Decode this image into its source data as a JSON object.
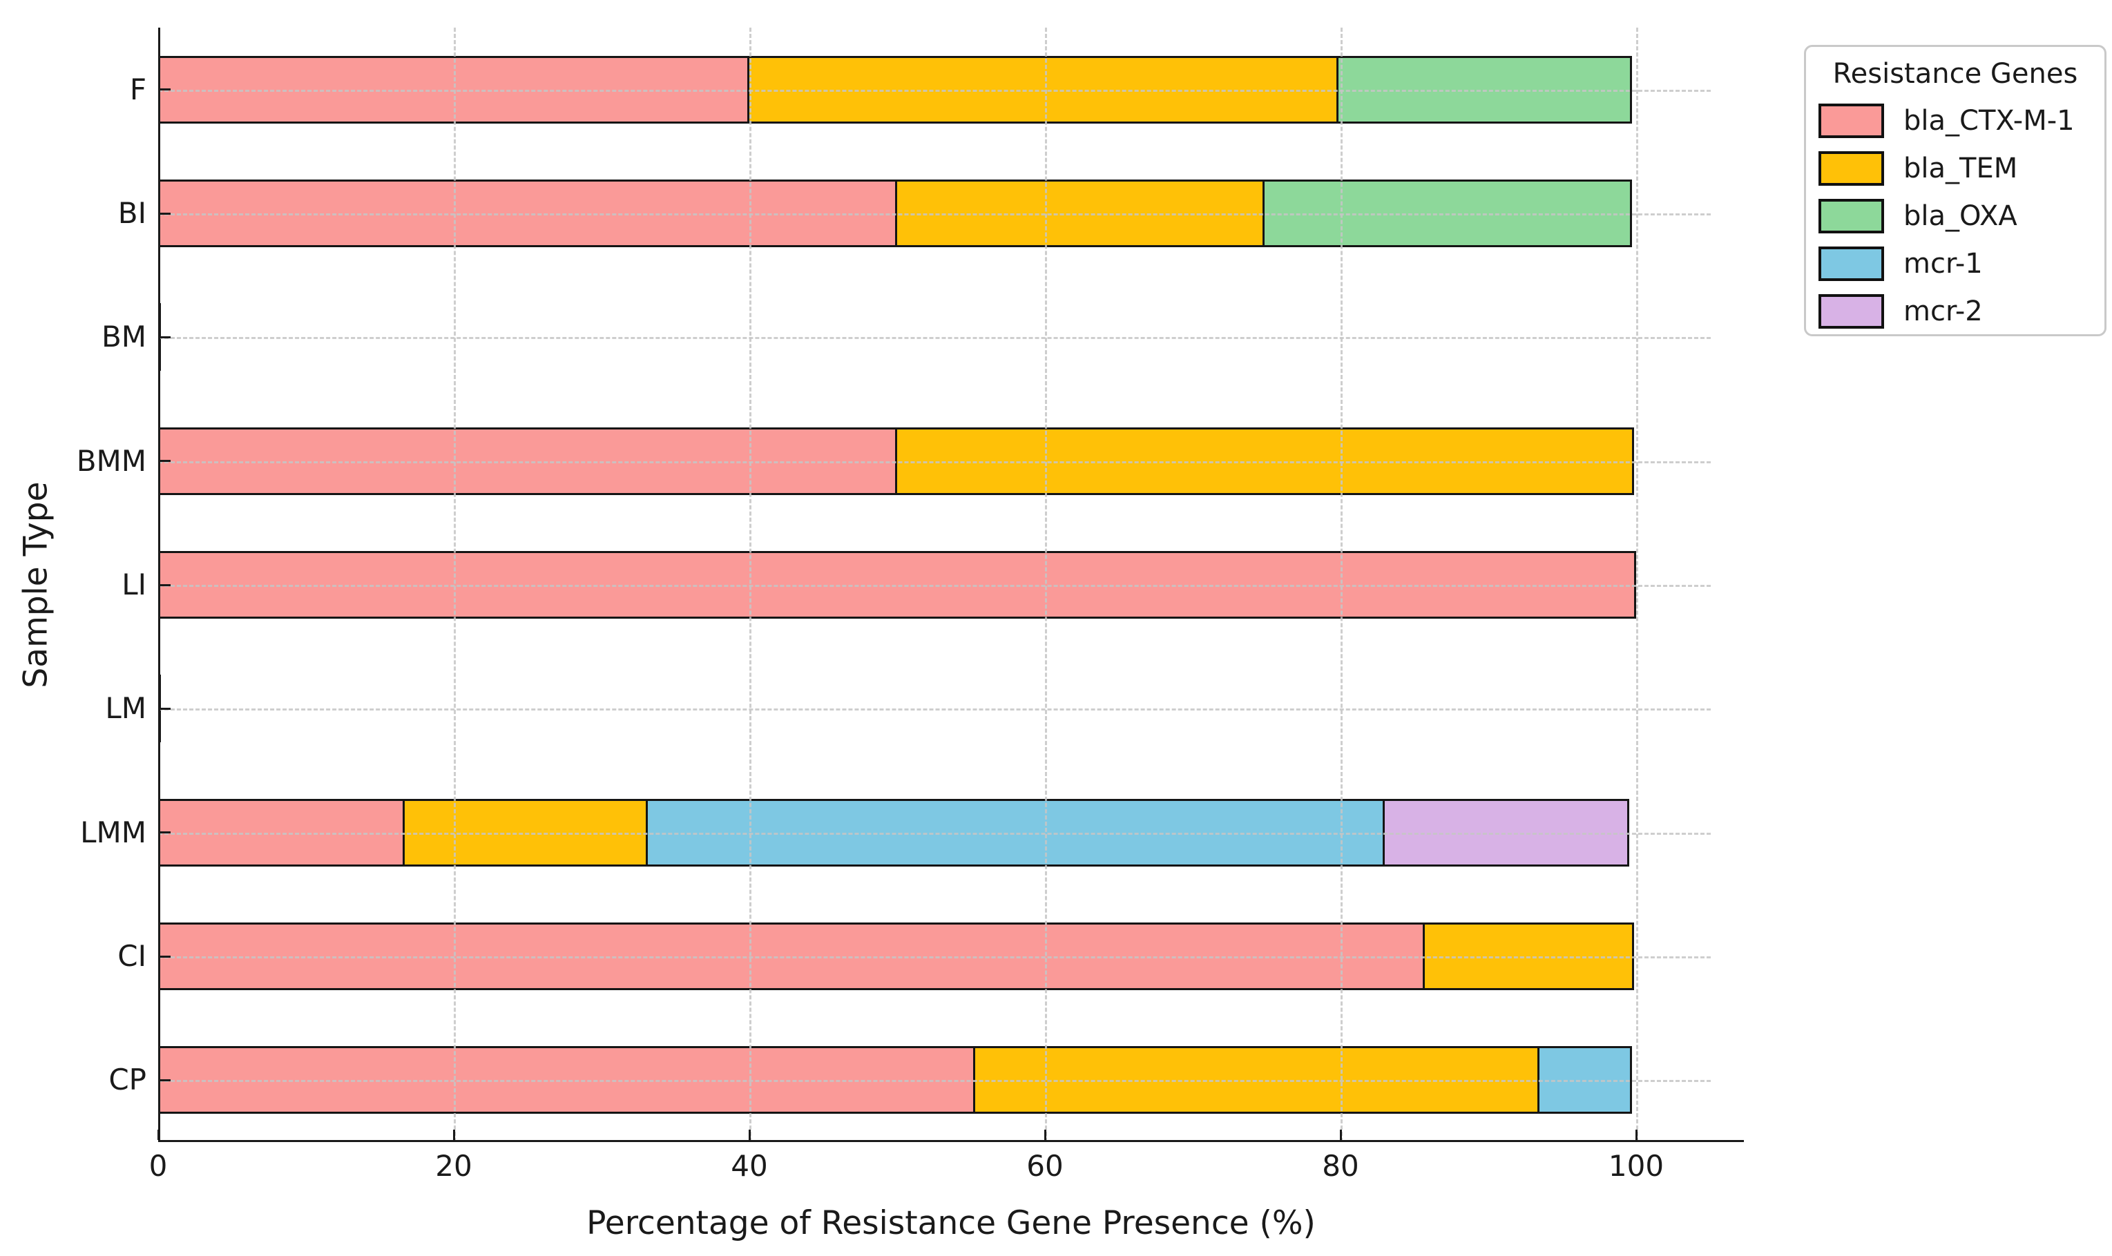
{
  "figure": {
    "xlabel": "Percentage of Resistance Gene Presence (%)",
    "ylabel": "Sample Type",
    "legend_title": "Resistance Genes"
  },
  "colors": {
    "bar_edge": "#151515",
    "grid": "#c6c6c6",
    "axis": "#1a1a1a",
    "legend_border": "#c9c9c9",
    "background": "#ffffff"
  },
  "chart_data": {
    "type": "bar",
    "orientation": "horizontal",
    "stacked": true,
    "title": "",
    "xlabel": "Percentage of Resistance Gene Presence (%)",
    "ylabel": "Sample Type",
    "categories": [
      "F",
      "BI",
      "BM",
      "BMM",
      "LI",
      "LM",
      "LMM",
      "CI",
      "CP"
    ],
    "series": [
      {
        "name": "bla_CTX-M-1",
        "color": "#FA9A98",
        "values": [
          40,
          50,
          0,
          50,
          100,
          0,
          16.7,
          85.7,
          55.3
        ]
      },
      {
        "name": "bla_TEM",
        "color": "#FFC107",
        "values": [
          40,
          25,
          0,
          50,
          0,
          0,
          16.6,
          14.3,
          38.3
        ]
      },
      {
        "name": "bla_OXA",
        "color": "#8DD89A",
        "values": [
          20,
          25,
          0,
          0,
          0,
          0,
          0,
          0,
          0
        ]
      },
      {
        "name": "mcr-1",
        "color": "#7EC8E3",
        "values": [
          0,
          0,
          0,
          0,
          0,
          0,
          50,
          0,
          6.4
        ]
      },
      {
        "name": "mcr-2",
        "color": "#D8B2E6",
        "values": [
          0,
          0,
          0,
          0,
          0,
          0,
          16.7,
          0,
          0
        ]
      }
    ],
    "xticks": [
      0,
      20,
      40,
      60,
      80,
      100
    ],
    "xlim": [
      0,
      107.2
    ],
    "grid": "dashed vertical lines at x ticks and dashed horizontal lines at category centers, drawn over bars",
    "legend_position": "outside upper right"
  }
}
